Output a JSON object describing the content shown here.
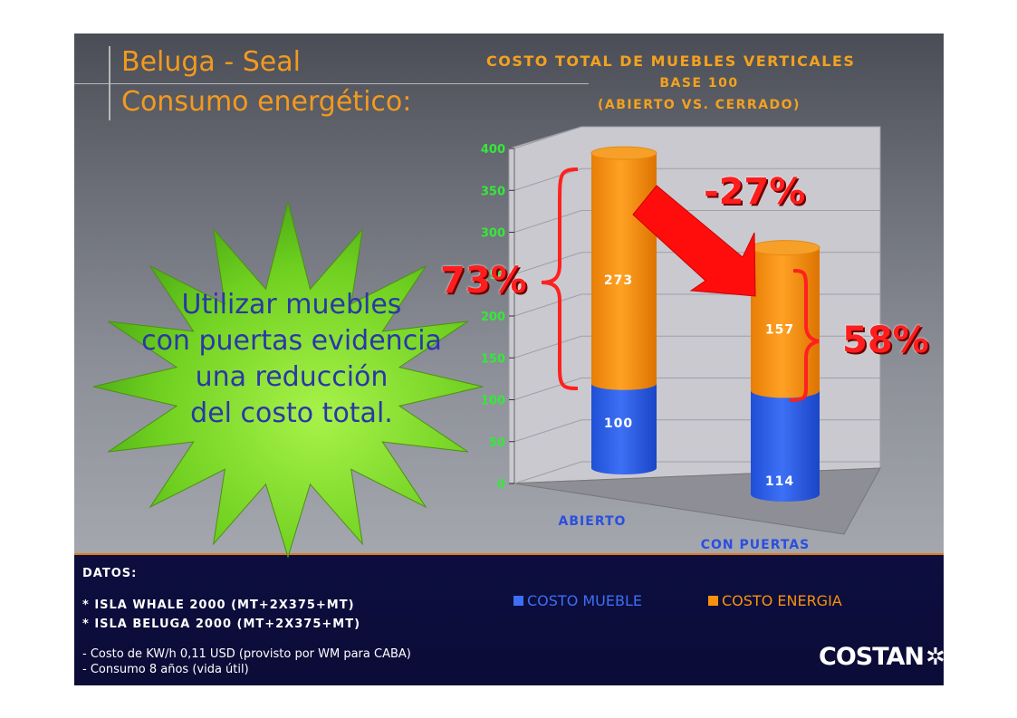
{
  "slide": {
    "title_line1": "Beluga - Seal",
    "title_line2": "Consumo energético:",
    "starburst_text": [
      "Utilizar muebles",
      "con puertas evidencia",
      "una reducción",
      "del costo total."
    ],
    "annotations": {
      "left_pct": "73%",
      "right_pct": "58%",
      "reduction_pct": "-27%"
    },
    "datos": {
      "heading": "DATOS:",
      "items": [
        "* ISLA WHALE 2000  (MT+2X375+MT)",
        "* ISLA BELUGA 2000 (MT+2X375+MT)"
      ],
      "notes": [
        "- Costo de KW/h 0,11 USD (provisto por WM para CABA)",
        "-  Consumo 8 años (vida útil)"
      ]
    },
    "logo_text": "COSTAN",
    "colors": {
      "title": "#f39a1e",
      "mueble": "#2f62e8",
      "energia": "#f7920f",
      "accent": "#ff1d1d",
      "star": "#7cdc2a"
    }
  },
  "chart_data": {
    "type": "bar",
    "title": "COSTO TOTAL DE MUEBLES VERTICALES",
    "subtitle": [
      "BASE 100",
      "(ABIERTO VS. CERRADO)"
    ],
    "categories": [
      "ABIERTO",
      "CON PUERTAS"
    ],
    "stacked": true,
    "series": [
      {
        "name": "COSTO MUEBLE",
        "values": [
          100,
          114
        ],
        "color": "#2f62e8"
      },
      {
        "name": "COSTO ENERGIA",
        "values": [
          273,
          157
        ],
        "color": "#f7920f"
      }
    ],
    "ylim": [
      0,
      400
    ],
    "yticks": [
      "0",
      "50",
      "100",
      "150",
      "200",
      "250",
      "300",
      "350",
      "400"
    ],
    "grid": true,
    "legend": "bottom"
  }
}
